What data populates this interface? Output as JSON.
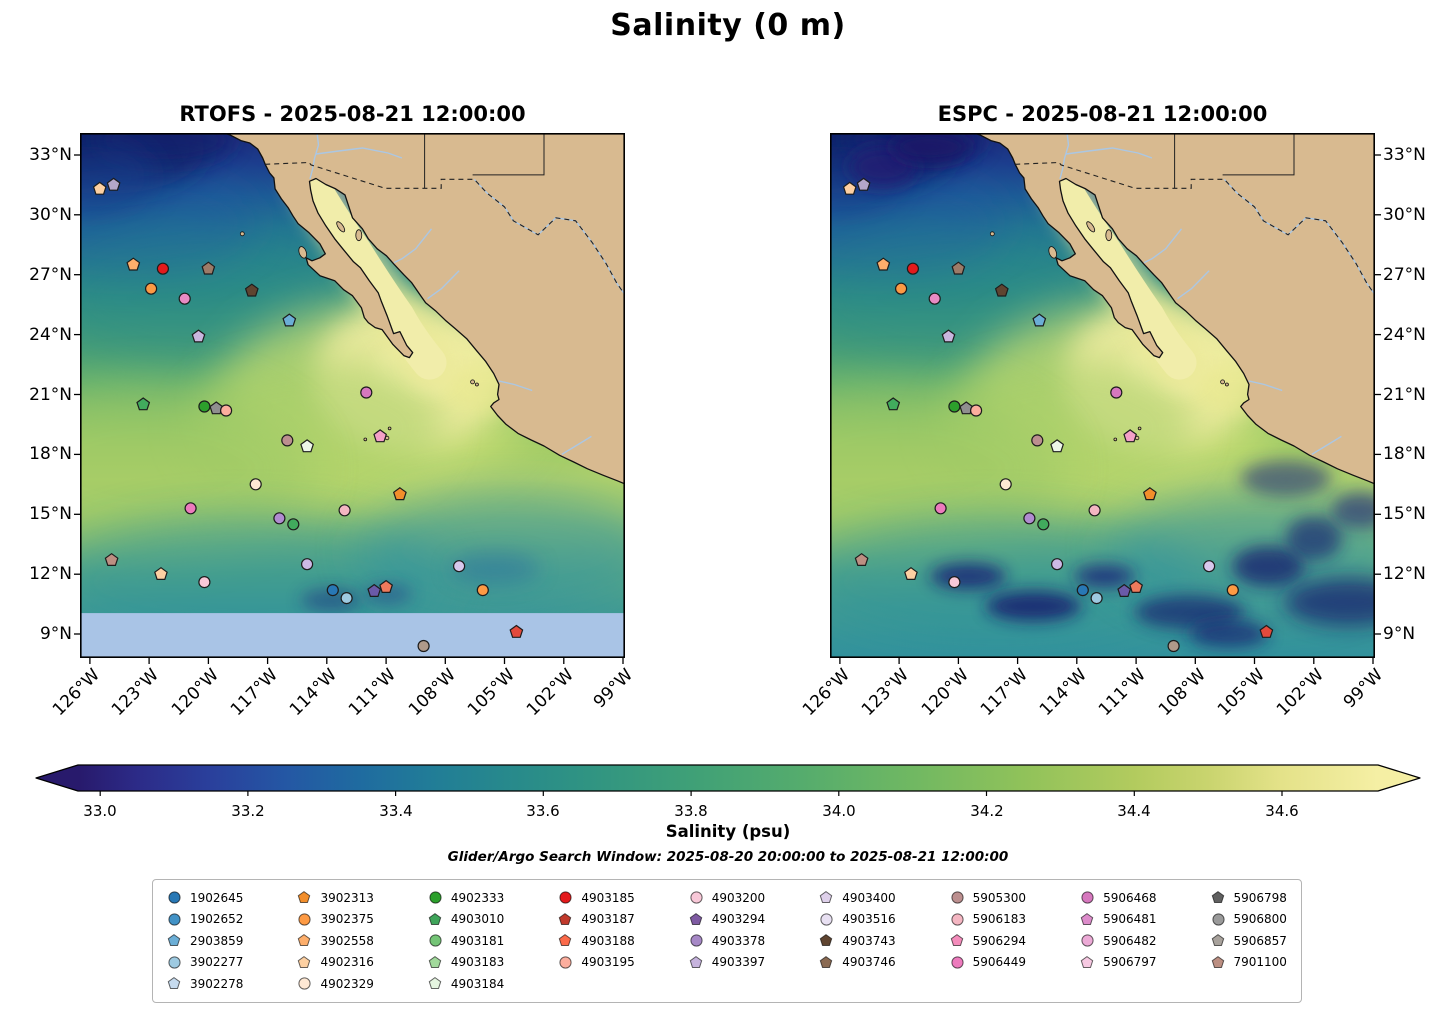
{
  "figure": {
    "title": "Salinity (0 m)",
    "subtitle": "Glider/Argo Search Window: 2025-08-20 20:00:00 to 2025-08-21 12:00:00"
  },
  "map_colors": {
    "land": "#d8ba90",
    "coastline": "#111111",
    "nodata_band": "#a9c4e6",
    "gulf_water": "#f1edaa",
    "river": "#a9c7e8",
    "border": "#222222",
    "marker_edge": "#1c1c1c"
  },
  "chart_data": {
    "type": "scatter",
    "subtype": "geographic-salinity-comparison-maps",
    "title": "Salinity (0 m)",
    "panels": [
      {
        "id": "rtofs",
        "title": "RTOFS - 2025-08-21 12:00:00",
        "lat_label_side": "left",
        "south_nodata_band": true
      },
      {
        "id": "espc",
        "title": "ESPC - 2025-08-21 12:00:00",
        "lat_label_side": "right",
        "south_nodata_band": false
      }
    ],
    "lon_range": [
      -126.5,
      -98.9
    ],
    "lat_range": [
      7.8,
      34.1
    ],
    "lon_ticks": [
      {
        "v": -126,
        "label": "126°W"
      },
      {
        "v": -123,
        "label": "123°W"
      },
      {
        "v": -120,
        "label": "120°W"
      },
      {
        "v": -117,
        "label": "117°W"
      },
      {
        "v": -114,
        "label": "114°W"
      },
      {
        "v": -111,
        "label": "111°W"
      },
      {
        "v": -108,
        "label": "108°W"
      },
      {
        "v": -105,
        "label": "105°W"
      },
      {
        "v": -102,
        "label": "102°W"
      },
      {
        "v": -99,
        "label": "99°W"
      }
    ],
    "lat_ticks": [
      {
        "v": 33,
        "label": "33°N"
      },
      {
        "v": 30,
        "label": "30°N"
      },
      {
        "v": 27,
        "label": "27°N"
      },
      {
        "v": 24,
        "label": "24°N"
      },
      {
        "v": 21,
        "label": "21°N"
      },
      {
        "v": 18,
        "label": "18°N"
      },
      {
        "v": 15,
        "label": "15°N"
      },
      {
        "v": 12,
        "label": "12°N"
      },
      {
        "v": 9,
        "label": "9°N"
      }
    ],
    "colorbar": {
      "label": "Salinity (psu)",
      "vmin": 32.97,
      "vmax": 34.73,
      "extend": "both",
      "tick_values": [
        33.0,
        33.2,
        33.4,
        33.6,
        33.8,
        34.0,
        34.2,
        34.4,
        34.6
      ],
      "stops": [
        [
          32.97,
          "#281a6c"
        ],
        [
          33.05,
          "#2c2b88"
        ],
        [
          33.15,
          "#2a409c"
        ],
        [
          33.25,
          "#2457a4"
        ],
        [
          33.35,
          "#1f6ba0"
        ],
        [
          33.45,
          "#217d97"
        ],
        [
          33.55,
          "#27898c"
        ],
        [
          33.65,
          "#2f9383"
        ],
        [
          33.8,
          "#3fa077"
        ],
        [
          33.95,
          "#55ac6d"
        ],
        [
          34.1,
          "#70b862"
        ],
        [
          34.25,
          "#90c25a"
        ],
        [
          34.4,
          "#b2cb5e"
        ],
        [
          34.5,
          "#c9d46e"
        ],
        [
          34.6,
          "#e4e289"
        ],
        [
          34.73,
          "#f5efa4"
        ]
      ]
    },
    "markers": [
      {
        "lon": -125.5,
        "lat": 31.3,
        "shape": "pentagon",
        "color": "#fdd0a2"
      },
      {
        "lon": -124.8,
        "lat": 31.5,
        "shape": "pentagon",
        "color": "#b3a6c9"
      },
      {
        "lon": -123.8,
        "lat": 27.5,
        "shape": "pentagon",
        "color": "#fdae6b"
      },
      {
        "lon": -122.3,
        "lat": 27.3,
        "shape": "circle",
        "color": "#e41a1c"
      },
      {
        "lon": -120.0,
        "lat": 27.3,
        "shape": "pentagon",
        "color": "#9c7b68"
      },
      {
        "lon": -122.9,
        "lat": 26.3,
        "shape": "circle",
        "color": "#fd9a44"
      },
      {
        "lon": -121.2,
        "lat": 25.8,
        "shape": "circle",
        "color": "#e88bc4"
      },
      {
        "lon": -117.8,
        "lat": 26.2,
        "shape": "pentagon",
        "color": "#5f4430"
      },
      {
        "lon": -115.9,
        "lat": 24.7,
        "shape": "pentagon",
        "color": "#6baed6"
      },
      {
        "lon": -120.5,
        "lat": 23.9,
        "shape": "pentagon",
        "color": "#c9b6df"
      },
      {
        "lon": -123.3,
        "lat": 20.5,
        "shape": "pentagon",
        "color": "#41ab5d"
      },
      {
        "lon": -120.2,
        "lat": 20.4,
        "shape": "circle",
        "color": "#2ca02c"
      },
      {
        "lon": -119.6,
        "lat": 20.3,
        "shape": "pentagon",
        "color": "#8f8f8f"
      },
      {
        "lon": -119.1,
        "lat": 20.2,
        "shape": "circle",
        "color": "#fcae9e"
      },
      {
        "lon": -112.0,
        "lat": 21.1,
        "shape": "circle",
        "color": "#d678be"
      },
      {
        "lon": -116.0,
        "lat": 18.7,
        "shape": "circle",
        "color": "#bc8f8f"
      },
      {
        "lon": -115.0,
        "lat": 18.4,
        "shape": "pentagon",
        "color": "#edf7e8"
      },
      {
        "lon": -111.3,
        "lat": 18.9,
        "shape": "pentagon",
        "color": "#f4a0c8"
      },
      {
        "lon": -117.6,
        "lat": 16.5,
        "shape": "circle",
        "color": "#fee8d4"
      },
      {
        "lon": -110.3,
        "lat": 16.0,
        "shape": "pentagon",
        "color": "#f28e2b"
      },
      {
        "lon": -120.9,
        "lat": 15.3,
        "shape": "circle",
        "color": "#ed7bbd"
      },
      {
        "lon": -116.4,
        "lat": 14.8,
        "shape": "circle",
        "color": "#b08cd0"
      },
      {
        "lon": -115.7,
        "lat": 14.5,
        "shape": "circle",
        "color": "#41ab5d"
      },
      {
        "lon": -113.1,
        "lat": 15.2,
        "shape": "circle",
        "color": "#f4b6c2"
      },
      {
        "lon": -124.9,
        "lat": 12.7,
        "shape": "pentagon",
        "color": "#bc8f82"
      },
      {
        "lon": -122.4,
        "lat": 12.0,
        "shape": "pentagon",
        "color": "#fdd0a2"
      },
      {
        "lon": -120.2,
        "lat": 11.6,
        "shape": "circle",
        "color": "#f8c8d8"
      },
      {
        "lon": -115.0,
        "lat": 12.5,
        "shape": "circle",
        "color": "#cdb9e6"
      },
      {
        "lon": -113.7,
        "lat": 11.2,
        "shape": "circle",
        "color": "#2878b5"
      },
      {
        "lon": -113.0,
        "lat": 10.8,
        "shape": "circle",
        "color": "#9ecae1"
      },
      {
        "lon": -111.6,
        "lat": 11.15,
        "shape": "pentagon",
        "color": "#6a5aa8"
      },
      {
        "lon": -111.0,
        "lat": 11.35,
        "shape": "pentagon",
        "color": "#ee7a5c"
      },
      {
        "lon": -107.3,
        "lat": 12.4,
        "shape": "circle",
        "color": "#d8c8ec"
      },
      {
        "lon": -106.1,
        "lat": 11.2,
        "shape": "circle",
        "color": "#fd9a44"
      },
      {
        "lon": -104.4,
        "lat": 9.1,
        "shape": "pentagon",
        "color": "#e34a3c"
      },
      {
        "lon": -109.1,
        "lat": 8.4,
        "shape": "circle",
        "color": "#b09a8a"
      }
    ],
    "legend": {
      "column_sizes": [
        5,
        5,
        5,
        4,
        4,
        4,
        4,
        4,
        4
      ],
      "entries": [
        {
          "id": "1902645",
          "shape": "circle",
          "color": "#2878b5"
        },
        {
          "id": "1902652",
          "shape": "circle",
          "color": "#4292c6"
        },
        {
          "id": "2903859",
          "shape": "pentagon",
          "color": "#6baed6"
        },
        {
          "id": "3902277",
          "shape": "circle",
          "color": "#9ecae1"
        },
        {
          "id": "3902278",
          "shape": "pentagon",
          "color": "#c6dbef"
        },
        {
          "id": "3902313",
          "shape": "pentagon",
          "color": "#f28e2b"
        },
        {
          "id": "3902375",
          "shape": "circle",
          "color": "#fd9a44"
        },
        {
          "id": "3902558",
          "shape": "pentagon",
          "color": "#fdae6b"
        },
        {
          "id": "4902316",
          "shape": "pentagon",
          "color": "#fdd0a2"
        },
        {
          "id": "4902329",
          "shape": "circle",
          "color": "#fee8d4"
        },
        {
          "id": "4902333",
          "shape": "circle",
          "color": "#2ca02c"
        },
        {
          "id": "4903010",
          "shape": "pentagon",
          "color": "#3fa45a"
        },
        {
          "id": "4903181",
          "shape": "circle",
          "color": "#74c476"
        },
        {
          "id": "4903183",
          "shape": "pentagon",
          "color": "#a1d99b"
        },
        {
          "id": "4903184",
          "shape": "pentagon",
          "color": "#e5f5e0"
        },
        {
          "id": "4903185",
          "shape": "circle",
          "color": "#e41a1c"
        },
        {
          "id": "4903187",
          "shape": "pentagon",
          "color": "#c0392b"
        },
        {
          "id": "4903188",
          "shape": "pentagon",
          "color": "#fb6a4a"
        },
        {
          "id": "4903195",
          "shape": "circle",
          "color": "#fcae9e"
        },
        {
          "id": "4903200",
          "shape": "circle",
          "color": "#f8c8d8"
        },
        {
          "id": "4903294",
          "shape": "pentagon",
          "color": "#7e5aa2"
        },
        {
          "id": "4903378",
          "shape": "circle",
          "color": "#a688c6"
        },
        {
          "id": "4903397",
          "shape": "pentagon",
          "color": "#c6b3dd"
        },
        {
          "id": "4903400",
          "shape": "pentagon",
          "color": "#ded0ea"
        },
        {
          "id": "4903516",
          "shape": "circle",
          "color": "#e8e0f2"
        },
        {
          "id": "4903743",
          "shape": "pentagon",
          "color": "#5f4430"
        },
        {
          "id": "4903746",
          "shape": "pentagon",
          "color": "#8a6a52"
        },
        {
          "id": "5905300",
          "shape": "circle",
          "color": "#bc8f8f"
        },
        {
          "id": "5906183",
          "shape": "circle",
          "color": "#f4b6c2"
        },
        {
          "id": "5906294",
          "shape": "pentagon",
          "color": "#f48cbb"
        },
        {
          "id": "5906449",
          "shape": "circle",
          "color": "#ed7bbd"
        },
        {
          "id": "5906468",
          "shape": "circle",
          "color": "#d678be"
        },
        {
          "id": "5906481",
          "shape": "pentagon",
          "color": "#dd8ccb"
        },
        {
          "id": "5906482",
          "shape": "circle",
          "color": "#ecaad6"
        },
        {
          "id": "5906797",
          "shape": "pentagon",
          "color": "#f7c9e2"
        },
        {
          "id": "5906798",
          "shape": "pentagon",
          "color": "#606060"
        },
        {
          "id": "5906800",
          "shape": "circle",
          "color": "#9a9a9a"
        },
        {
          "id": "5906857",
          "shape": "pentagon",
          "color": "#a8a29c"
        },
        {
          "id": "7901100",
          "shape": "pentagon",
          "color": "#bc8f82"
        }
      ]
    }
  }
}
